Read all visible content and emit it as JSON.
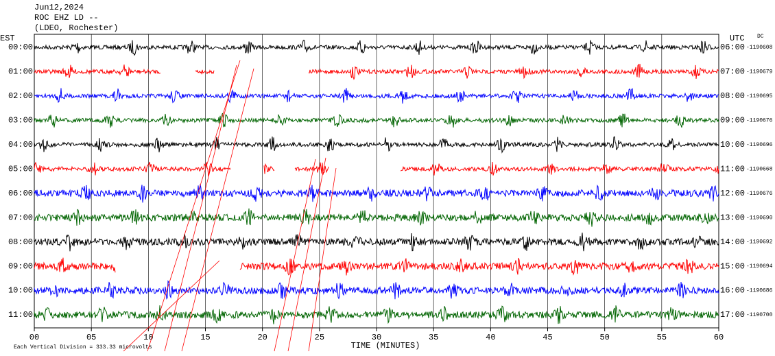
{
  "chart_data": {
    "type": "helicorder",
    "title": "Jun12,2024",
    "subtitle": "ROC EHZ LD --",
    "location": "(LDEO, Rochester)",
    "left_axis_label": "EST",
    "right_axis_label": "UTC",
    "dc_label": "DC",
    "categories": [
      "00:00",
      "01:00",
      "02:00",
      "03:00",
      "04:00",
      "05:00",
      "06:00",
      "07:00",
      "08:00",
      "09:00",
      "10:00",
      "11:00"
    ],
    "right_categories": [
      "06:00",
      "07:00",
      "08:00",
      "09:00",
      "10:00",
      "11:00",
      "12:00",
      "13:00",
      "14:00",
      "15:00",
      "16:00",
      "17:00"
    ],
    "dc_offsets": [
      "-1190608",
      "-1190679",
      "-1190695",
      "-1190676",
      "-1190696",
      "-1190668",
      "-1190676",
      "-1190690",
      "-1190692",
      "-1190694",
      "-1190686",
      "-1190700"
    ],
    "colors": [
      "#000000",
      "#ff0000",
      "#0000ff",
      "#006400"
    ],
    "x_label": "TIME (MINUTES)",
    "xlim": [
      0,
      60
    ],
    "xticks": [
      {
        "value": 0,
        "label": "00"
      },
      {
        "value": 5,
        "label": "05"
      },
      10,
      15,
      20,
      25,
      30,
      35,
      40,
      45,
      50,
      55,
      60
    ],
    "grid": true,
    "scale_note": "Each Vertical Division =  333.33 microvolts"
  }
}
